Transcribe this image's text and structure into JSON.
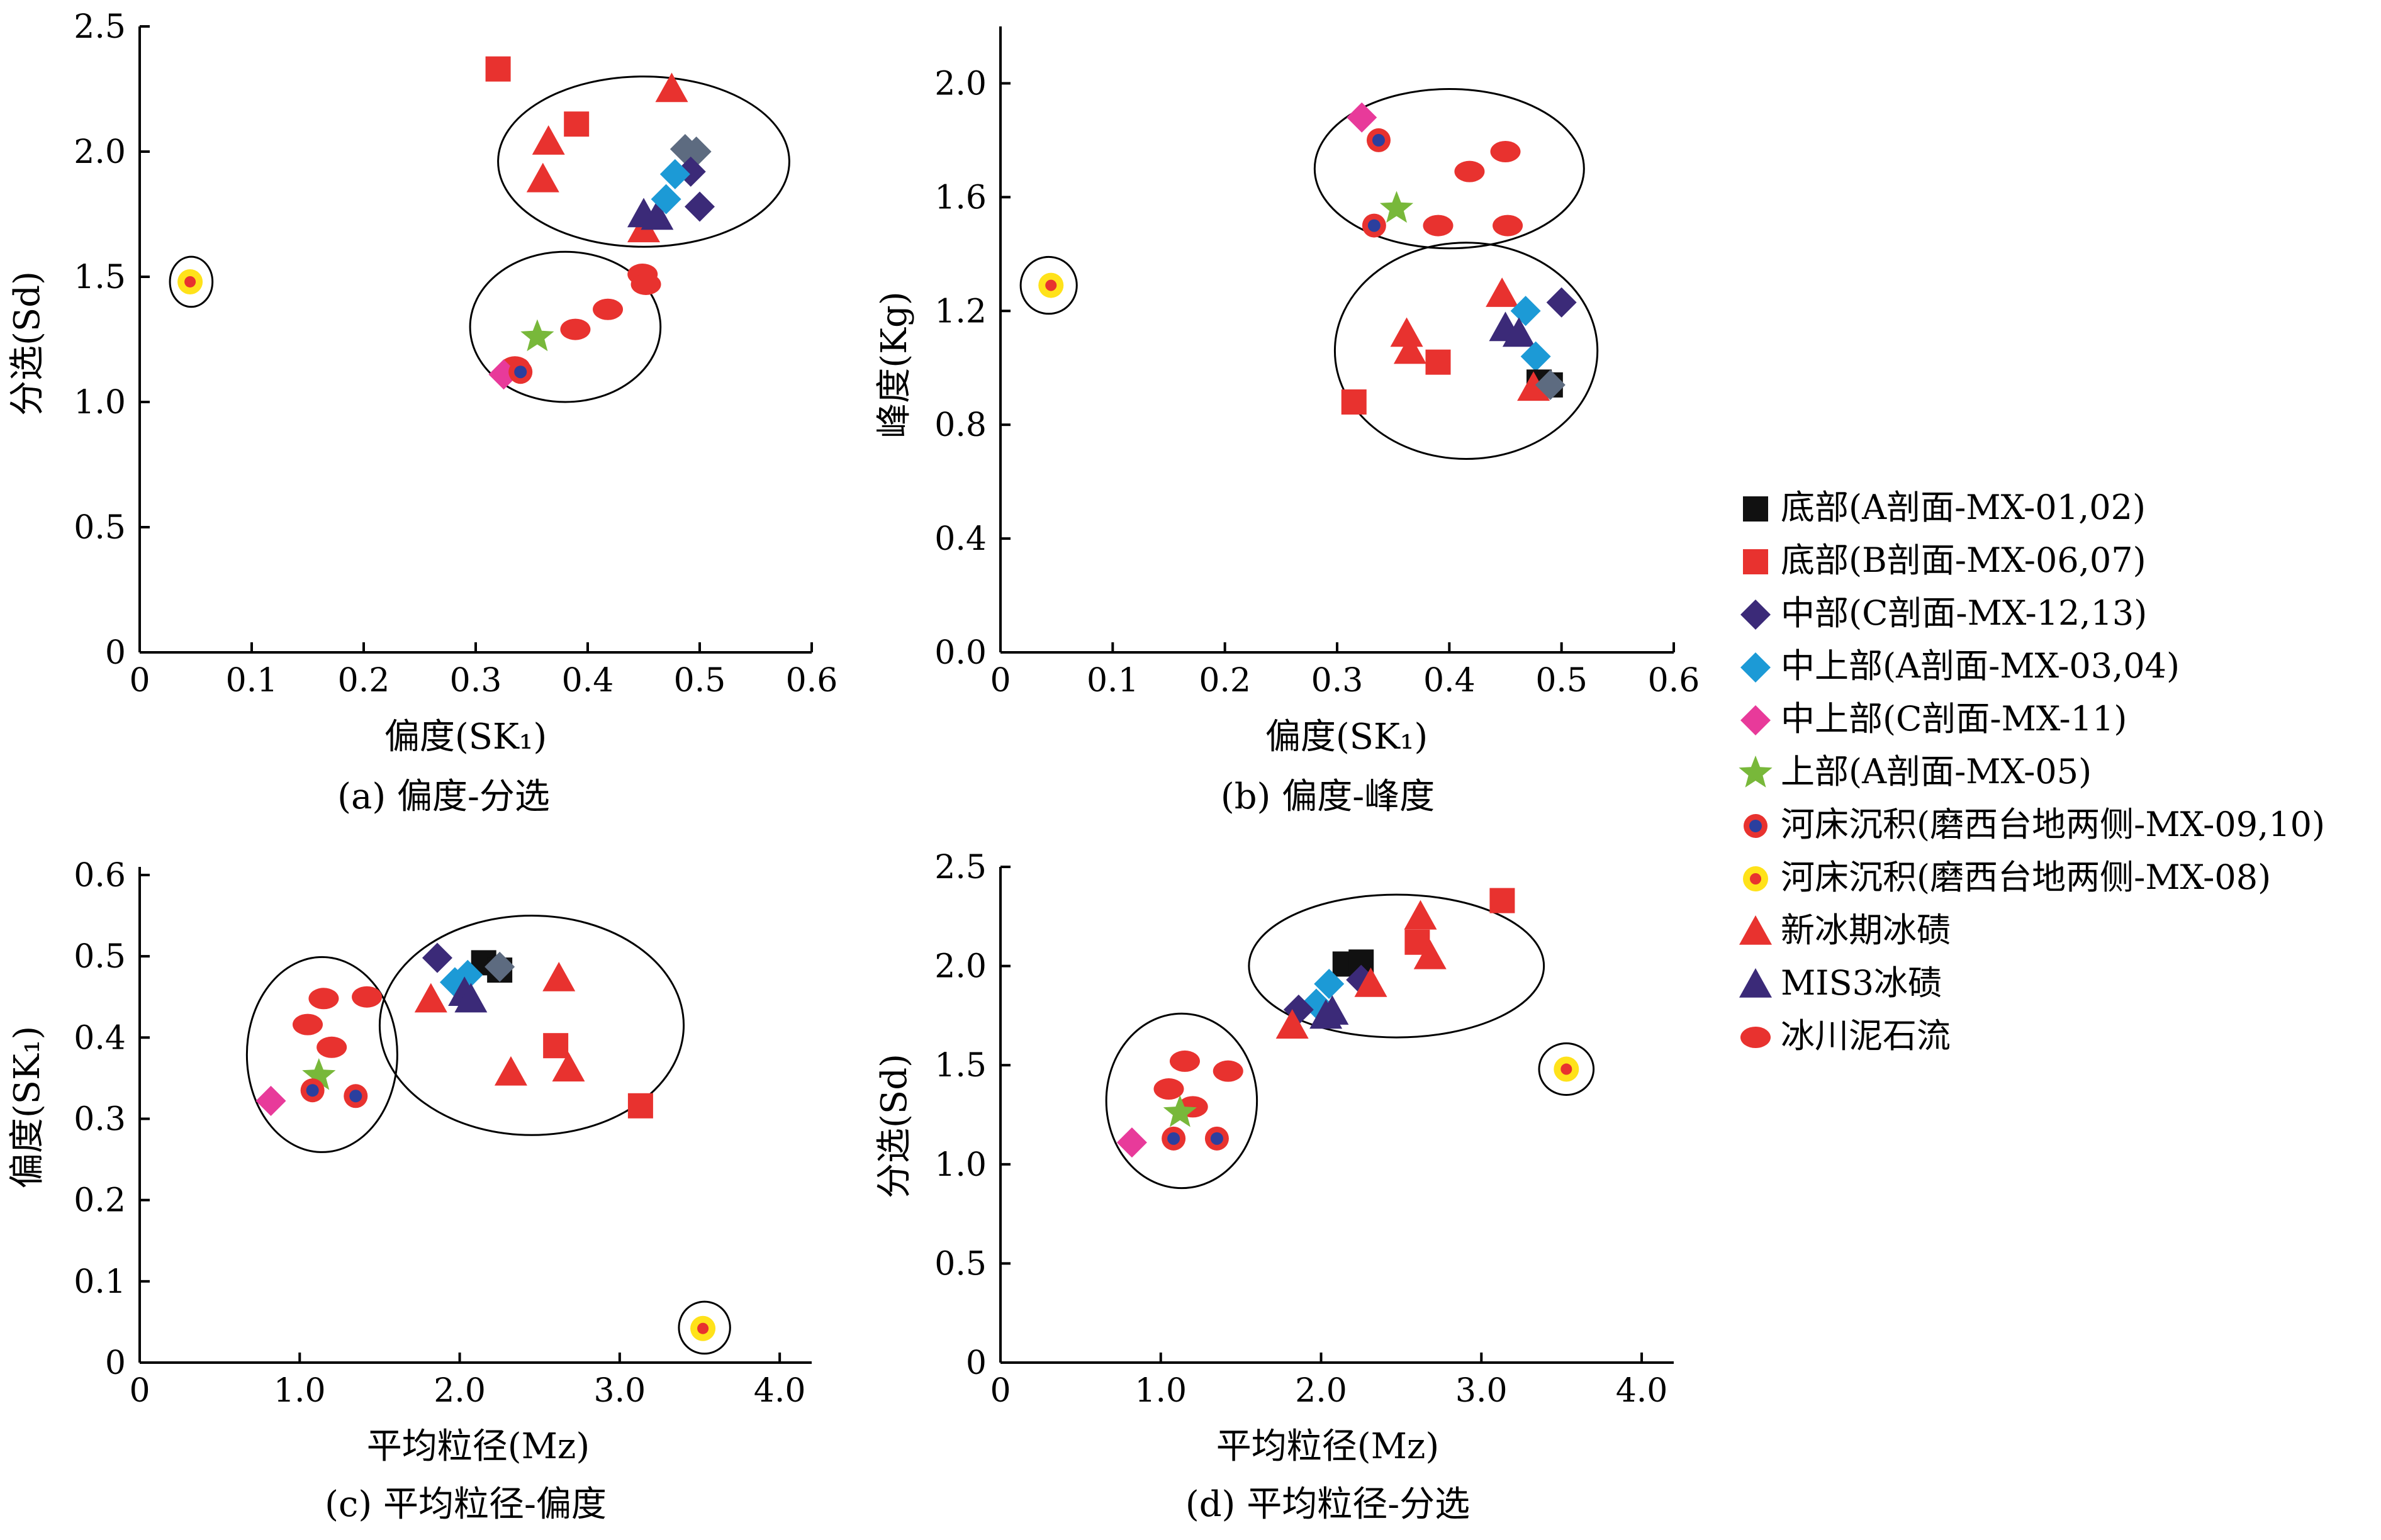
{
  "colors": {
    "black_square": "#111111",
    "red": "#e8322f",
    "indigo": "#3b2a78",
    "cyan": "#1c9ad6",
    "magenta": "#e83a9a",
    "green": "#78b83a",
    "circle_blue_ring": "#2b3f9e",
    "yellow": "#ffe21a",
    "steel": "#5d6b80"
  },
  "legend": [
    {
      "label": "底部(A剖面-MX-01,02)",
      "marker": "square",
      "color": "#111111"
    },
    {
      "label": "底部(B剖面-MX-06,07)",
      "marker": "square",
      "color": "#e8322f"
    },
    {
      "label": "中部(C剖面-MX-12,13)",
      "marker": "diamond",
      "color": "#3b2a78"
    },
    {
      "label": "中上部(A剖面-MX-03,04)",
      "marker": "diamond",
      "color": "#1c9ad6"
    },
    {
      "label": "中上部(C剖面-MX-11)",
      "marker": "diamond",
      "color": "#e83a9a"
    },
    {
      "label": "上部(A剖面-MX-05)",
      "marker": "star",
      "color": "#78b83a"
    },
    {
      "label": "河床沉积(磨西台地两侧-MX-09,10)",
      "marker": "ringdot",
      "color": "#e8322f"
    },
    {
      "label": "河床沉积(磨西台地两侧-MX-08)",
      "marker": "yellowring",
      "color": "#ffe21a"
    },
    {
      "label": "新冰期冰碛",
      "marker": "triangle",
      "color": "#e8322f"
    },
    {
      "label": "MIS3冰碛",
      "marker": "triangle",
      "color": "#3b2a78"
    },
    {
      "label": "冰川泥石流",
      "marker": "ellipse",
      "color": "#e8322f"
    }
  ],
  "chart_data": [
    {
      "type": "scatter",
      "caption": "(a) 偏度-分选",
      "xlabel": "偏度(SK₁)",
      "ylabel": "分选(Sd)",
      "xlim": [
        0,
        0.6
      ],
      "ylim": [
        0,
        2.5
      ],
      "xticks": [
        0,
        0.1,
        0.2,
        0.3,
        0.4,
        0.5,
        0.6
      ],
      "xticklabels": [
        "0",
        "0.1",
        "0.2",
        "0.3",
        "0.4",
        "0.5",
        "0.6"
      ],
      "yticks": [
        0,
        0.5,
        1.0,
        1.5,
        2.0,
        2.5
      ],
      "yticklabels": [
        "0",
        "0.5",
        "1.0",
        "1.5",
        "2.0",
        "2.5"
      ],
      "points": [
        {
          "x": 0.32,
          "y": 2.33,
          "m": "square",
          "c": "#e8322f"
        },
        {
          "x": 0.39,
          "y": 2.11,
          "m": "square",
          "c": "#e8322f"
        },
        {
          "x": 0.475,
          "y": 2.25,
          "m": "triangle",
          "c": "#e8322f"
        },
        {
          "x": 0.365,
          "y": 2.04,
          "m": "triangle",
          "c": "#e8322f"
        },
        {
          "x": 0.36,
          "y": 1.89,
          "m": "triangle",
          "c": "#e8322f"
        },
        {
          "x": 0.45,
          "y": 1.69,
          "m": "triangle",
          "c": "#e8322f"
        },
        {
          "x": 0.45,
          "y": 1.75,
          "m": "triangle",
          "c": "#3b2a78"
        },
        {
          "x": 0.462,
          "y": 1.74,
          "m": "triangle",
          "c": "#3b2a78"
        },
        {
          "x": 0.487,
          "y": 2.01,
          "m": "diamond",
          "c": "#5d6b80"
        },
        {
          "x": 0.497,
          "y": 2.0,
          "m": "diamond",
          "c": "#5d6b80"
        },
        {
          "x": 0.492,
          "y": 1.92,
          "m": "diamond",
          "c": "#3b2a78"
        },
        {
          "x": 0.5,
          "y": 1.78,
          "m": "diamond",
          "c": "#3b2a78"
        },
        {
          "x": 0.478,
          "y": 1.91,
          "m": "diamond",
          "c": "#1c9ad6"
        },
        {
          "x": 0.47,
          "y": 1.81,
          "m": "diamond",
          "c": "#1c9ad6"
        },
        {
          "x": 0.449,
          "y": 1.51,
          "m": "ellipse",
          "c": "#e8322f"
        },
        {
          "x": 0.452,
          "y": 1.47,
          "m": "ellipse",
          "c": "#e8322f"
        },
        {
          "x": 0.418,
          "y": 1.37,
          "m": "ellipse",
          "c": "#e8322f"
        },
        {
          "x": 0.389,
          "y": 1.29,
          "m": "ellipse",
          "c": "#e8322f"
        },
        {
          "x": 0.335,
          "y": 1.14,
          "m": "ellipse",
          "c": "#e8322f"
        },
        {
          "x": 0.355,
          "y": 1.26,
          "m": "star",
          "c": "#78b83a"
        },
        {
          "x": 0.325,
          "y": 1.11,
          "m": "diamond",
          "c": "#e83a9a"
        },
        {
          "x": 0.34,
          "y": 1.12,
          "m": "ringdot",
          "c": "#e8322f"
        },
        {
          "x": 0.045,
          "y": 1.48,
          "m": "yellowring",
          "c": "#ffe21a"
        }
      ],
      "groups": [
        {
          "cx": 0.45,
          "cy": 1.96,
          "rx": 0.13,
          "ry": 0.34,
          "angle": 0
        },
        {
          "cx": 0.38,
          "cy": 1.3,
          "rx": 0.085,
          "ry": 0.3,
          "angle": 0
        },
        {
          "cx": 0.046,
          "cy": 1.48,
          "rx": 0.019,
          "ry": 0.1,
          "angle": 0
        }
      ]
    },
    {
      "type": "scatter",
      "caption": "(b) 偏度-峰度",
      "xlabel": "偏度(SK₁)",
      "ylabel": "峰度(Kg)",
      "xlim": [
        0,
        0.6
      ],
      "ylim": [
        0,
        2.2
      ],
      "xticks": [
        0,
        0.1,
        0.2,
        0.3,
        0.4,
        0.5,
        0.6
      ],
      "xticklabels": [
        "0",
        "0.1",
        "0.2",
        "0.3",
        "0.4",
        "0.5",
        "0.6"
      ],
      "yticks": [
        0,
        0.4,
        0.8,
        1.2,
        1.6,
        2.0
      ],
      "yticklabels": [
        "0.0",
        "0.4",
        "0.8",
        "1.2",
        "1.6",
        "2.0"
      ],
      "points": [
        {
          "x": 0.322,
          "y": 1.88,
          "m": "diamond",
          "c": "#e83a9a"
        },
        {
          "x": 0.337,
          "y": 1.8,
          "m": "ringdot",
          "c": "#e8322f"
        },
        {
          "x": 0.418,
          "y": 1.69,
          "m": "ellipse",
          "c": "#e8322f"
        },
        {
          "x": 0.45,
          "y": 1.76,
          "m": "ellipse",
          "c": "#e8322f"
        },
        {
          "x": 0.353,
          "y": 1.56,
          "m": "star",
          "c": "#78b83a"
        },
        {
          "x": 0.333,
          "y": 1.5,
          "m": "ringdot",
          "c": "#e8322f"
        },
        {
          "x": 0.39,
          "y": 1.5,
          "m": "ellipse",
          "c": "#e8322f"
        },
        {
          "x": 0.452,
          "y": 1.5,
          "m": "ellipse",
          "c": "#e8322f"
        },
        {
          "x": 0.045,
          "y": 1.29,
          "m": "yellowring",
          "c": "#ffe21a"
        },
        {
          "x": 0.447,
          "y": 1.26,
          "m": "triangle",
          "c": "#e8322f"
        },
        {
          "x": 0.5,
          "y": 1.23,
          "m": "diamond",
          "c": "#3b2a78"
        },
        {
          "x": 0.468,
          "y": 1.2,
          "m": "diamond",
          "c": "#1c9ad6"
        },
        {
          "x": 0.362,
          "y": 1.12,
          "m": "triangle",
          "c": "#e8322f"
        },
        {
          "x": 0.45,
          "y": 1.14,
          "m": "triangle",
          "c": "#3b2a78"
        },
        {
          "x": 0.462,
          "y": 1.12,
          "m": "triangle",
          "c": "#3b2a78"
        },
        {
          "x": 0.365,
          "y": 1.06,
          "m": "triangle",
          "c": "#e8322f"
        },
        {
          "x": 0.477,
          "y": 1.04,
          "m": "diamond",
          "c": "#1c9ad6"
        },
        {
          "x": 0.39,
          "y": 1.02,
          "m": "square",
          "c": "#e8322f"
        },
        {
          "x": 0.48,
          "y": 0.95,
          "m": "square",
          "c": "#111111"
        },
        {
          "x": 0.49,
          "y": 0.94,
          "m": "square",
          "c": "#111111"
        },
        {
          "x": 0.475,
          "y": 0.93,
          "m": "triangle",
          "c": "#e8322f"
        },
        {
          "x": 0.49,
          "y": 0.94,
          "m": "diamond",
          "c": "#5d6b80"
        },
        {
          "x": 0.315,
          "y": 0.88,
          "m": "square",
          "c": "#e8322f"
        }
      ],
      "groups": [
        {
          "cx": 0.4,
          "cy": 1.7,
          "rx": 0.12,
          "ry": 0.28,
          "angle": 0
        },
        {
          "cx": 0.415,
          "cy": 1.06,
          "rx": 0.117,
          "ry": 0.38,
          "angle": 0
        },
        {
          "cx": 0.043,
          "cy": 1.29,
          "rx": 0.025,
          "ry": 0.1,
          "angle": 0
        }
      ]
    },
    {
      "type": "scatter",
      "caption": "(c) 平均粒径-偏度",
      "xlabel": "平均粒径(Mz)",
      "ylabel": "偏度(SK₁)",
      "xlim": [
        0,
        4.2
      ],
      "ylim": [
        0,
        0.61
      ],
      "xticks": [
        0,
        1,
        2,
        3,
        4
      ],
      "xticklabels": [
        "0",
        "1.0",
        "2.0",
        "3.0",
        "4.0"
      ],
      "yticks": [
        0,
        0.1,
        0.2,
        0.3,
        0.4,
        0.5,
        0.6
      ],
      "yticklabels": [
        "0",
        "0.1",
        "0.2",
        "0.3",
        "0.4",
        "0.5",
        "0.6"
      ],
      "points": [
        {
          "x": 2.15,
          "y": 0.492,
          "m": "square",
          "c": "#111111"
        },
        {
          "x": 2.25,
          "y": 0.483,
          "m": "square",
          "c": "#111111"
        },
        {
          "x": 1.86,
          "y": 0.498,
          "m": "diamond",
          "c": "#3b2a78"
        },
        {
          "x": 2.25,
          "y": 0.487,
          "m": "diamond",
          "c": "#5d6b80"
        },
        {
          "x": 2.05,
          "y": 0.477,
          "m": "diamond",
          "c": "#1c9ad6"
        },
        {
          "x": 1.97,
          "y": 0.468,
          "m": "diamond",
          "c": "#1c9ad6"
        },
        {
          "x": 2.03,
          "y": 0.455,
          "m": "triangle",
          "c": "#3b2a78"
        },
        {
          "x": 2.07,
          "y": 0.447,
          "m": "triangle",
          "c": "#3b2a78"
        },
        {
          "x": 1.82,
          "y": 0.447,
          "m": "triangle",
          "c": "#e8322f"
        },
        {
          "x": 2.62,
          "y": 0.473,
          "m": "triangle",
          "c": "#e8322f"
        },
        {
          "x": 2.6,
          "y": 0.39,
          "m": "square",
          "c": "#e8322f"
        },
        {
          "x": 2.32,
          "y": 0.357,
          "m": "triangle",
          "c": "#e8322f"
        },
        {
          "x": 2.68,
          "y": 0.362,
          "m": "triangle",
          "c": "#e8322f"
        },
        {
          "x": 3.13,
          "y": 0.316,
          "m": "square",
          "c": "#e8322f"
        },
        {
          "x": 1.15,
          "y": 0.448,
          "m": "ellipse",
          "c": "#e8322f"
        },
        {
          "x": 1.42,
          "y": 0.45,
          "m": "ellipse",
          "c": "#e8322f"
        },
        {
          "x": 1.05,
          "y": 0.416,
          "m": "ellipse",
          "c": "#e8322f"
        },
        {
          "x": 1.2,
          "y": 0.388,
          "m": "ellipse",
          "c": "#e8322f"
        },
        {
          "x": 1.12,
          "y": 0.353,
          "m": "star",
          "c": "#78b83a"
        },
        {
          "x": 1.08,
          "y": 0.335,
          "m": "ringdot",
          "c": "#e8322f"
        },
        {
          "x": 1.35,
          "y": 0.328,
          "m": "ringdot",
          "c": "#e8322f"
        },
        {
          "x": 0.82,
          "y": 0.322,
          "m": "diamond",
          "c": "#e83a9a"
        },
        {
          "x": 3.52,
          "y": 0.042,
          "m": "yellowring",
          "c": "#ffe21a"
        }
      ],
      "groups": [
        {
          "cx": 1.14,
          "cy": 0.379,
          "rx": 0.47,
          "ry": 0.12,
          "angle": 0
        },
        {
          "cx": 2.45,
          "cy": 0.415,
          "rx": 0.95,
          "ry": 0.135,
          "angle": 0
        },
        {
          "cx": 3.53,
          "cy": 0.043,
          "rx": 0.16,
          "ry": 0.032,
          "angle": 0
        }
      ]
    },
    {
      "type": "scatter",
      "caption": "(d) 平均粒径-分选",
      "xlabel": "平均粒径(Mz)",
      "ylabel": "分选(Sd)",
      "xlim": [
        0,
        4.2
      ],
      "ylim": [
        0,
        2.5
      ],
      "xticks": [
        0,
        1,
        2,
        3,
        4
      ],
      "xticklabels": [
        "0",
        "1.0",
        "2.0",
        "3.0",
        "4.0"
      ],
      "yticks": [
        0,
        0.5,
        1.0,
        1.5,
        2.0,
        2.5
      ],
      "yticklabels": [
        "0",
        "0.5",
        "1.0",
        "1.5",
        "2.0",
        "2.5"
      ],
      "points": [
        {
          "x": 3.13,
          "y": 2.33,
          "m": "square",
          "c": "#e8322f"
        },
        {
          "x": 2.6,
          "y": 2.12,
          "m": "square",
          "c": "#e8322f"
        },
        {
          "x": 2.62,
          "y": 2.25,
          "m": "triangle",
          "c": "#e8322f"
        },
        {
          "x": 2.68,
          "y": 2.05,
          "m": "triangle",
          "c": "#e8322f"
        },
        {
          "x": 2.15,
          "y": 2.01,
          "m": "square",
          "c": "#111111"
        },
        {
          "x": 2.25,
          "y": 2.02,
          "m": "square",
          "c": "#111111"
        },
        {
          "x": 2.25,
          "y": 1.93,
          "m": "diamond",
          "c": "#3b2a78"
        },
        {
          "x": 2.05,
          "y": 1.91,
          "m": "diamond",
          "c": "#1c9ad6"
        },
        {
          "x": 2.31,
          "y": 1.91,
          "m": "triangle",
          "c": "#e8322f"
        },
        {
          "x": 1.97,
          "y": 1.81,
          "m": "diamond",
          "c": "#1c9ad6"
        },
        {
          "x": 1.86,
          "y": 1.78,
          "m": "diamond",
          "c": "#3b2a78"
        },
        {
          "x": 2.03,
          "y": 1.75,
          "m": "triangle",
          "c": "#3b2a78"
        },
        {
          "x": 2.07,
          "y": 1.77,
          "m": "triangle",
          "c": "#3b2a78"
        },
        {
          "x": 1.82,
          "y": 1.7,
          "m": "triangle",
          "c": "#e8322f"
        },
        {
          "x": 1.15,
          "y": 1.52,
          "m": "ellipse",
          "c": "#e8322f"
        },
        {
          "x": 1.42,
          "y": 1.47,
          "m": "ellipse",
          "c": "#e8322f"
        },
        {
          "x": 1.05,
          "y": 1.38,
          "m": "ellipse",
          "c": "#e8322f"
        },
        {
          "x": 1.2,
          "y": 1.29,
          "m": "ellipse",
          "c": "#e8322f"
        },
        {
          "x": 1.12,
          "y": 1.26,
          "m": "star",
          "c": "#78b83a"
        },
        {
          "x": 1.08,
          "y": 1.13,
          "m": "ringdot",
          "c": "#e8322f"
        },
        {
          "x": 1.35,
          "y": 1.13,
          "m": "ringdot",
          "c": "#e8322f"
        },
        {
          "x": 0.82,
          "y": 1.11,
          "m": "diamond",
          "c": "#e83a9a"
        },
        {
          "x": 3.53,
          "y": 1.48,
          "m": "yellowring",
          "c": "#ffe21a"
        }
      ],
      "groups": [
        {
          "cx": 1.13,
          "cy": 1.32,
          "rx": 0.47,
          "ry": 0.44,
          "angle": 0
        },
        {
          "cx": 2.47,
          "cy": 2.0,
          "rx": 0.92,
          "ry": 0.36,
          "angle": 0
        },
        {
          "cx": 3.53,
          "cy": 1.48,
          "rx": 0.17,
          "ry": 0.13,
          "angle": 0
        }
      ]
    }
  ]
}
